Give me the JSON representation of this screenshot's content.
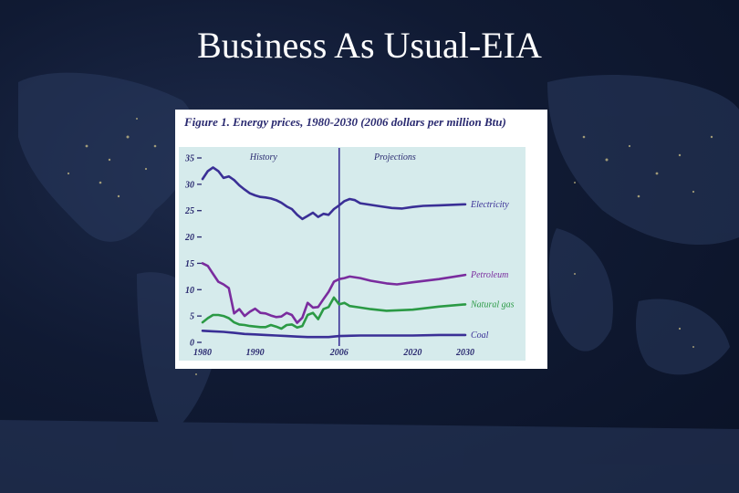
{
  "slide": {
    "title": "Business As Usual-EIA"
  },
  "chart_data": {
    "type": "line",
    "title": "Figure 1. Energy prices, 1980-2030 (2006 dollars per million Btu)",
    "xlim": [
      1980,
      2030
    ],
    "ylim": [
      0,
      35
    ],
    "x_ticks": [
      1980,
      1990,
      2006,
      2020,
      2030
    ],
    "y_ticks": [
      0,
      5,
      10,
      15,
      20,
      25,
      30,
      35
    ],
    "grid": false,
    "legend": "inline labels at right end of each series",
    "divider_year": 2006,
    "region_labels": [
      "History",
      "Projections"
    ],
    "colors": {
      "plot_background": "#d6ebec",
      "electricity": "#3a2f96",
      "petroleum": "#7a2c9e",
      "natural_gas": "#2b9a45",
      "coal": "#3a2f96",
      "divider": "#3a2f96",
      "axis_text": "#2a2a70"
    },
    "series": [
      {
        "name": "Electricity",
        "color_key": "electricity",
        "points": [
          [
            1980,
            31
          ],
          [
            1981,
            32.5
          ],
          [
            1982,
            33.2
          ],
          [
            1983,
            32.5
          ],
          [
            1984,
            31.2
          ],
          [
            1985,
            31.5
          ],
          [
            1986,
            30.8
          ],
          [
            1987,
            29.8
          ],
          [
            1988,
            29
          ],
          [
            1989,
            28.3
          ],
          [
            1990,
            27.9
          ],
          [
            1991,
            27.6
          ],
          [
            1992,
            27.5
          ],
          [
            1993,
            27.3
          ],
          [
            1994,
            27
          ],
          [
            1995,
            26.5
          ],
          [
            1996,
            25.8
          ],
          [
            1997,
            25.3
          ],
          [
            1998,
            24.2
          ],
          [
            1999,
            23.4
          ],
          [
            2000,
            24
          ],
          [
            2001,
            24.6
          ],
          [
            2002,
            23.8
          ],
          [
            2003,
            24.4
          ],
          [
            2004,
            24.2
          ],
          [
            2005,
            25.3
          ],
          [
            2006,
            26
          ],
          [
            2007,
            26.8
          ],
          [
            2008,
            27.2
          ],
          [
            2009,
            27
          ],
          [
            2010,
            26.4
          ],
          [
            2012,
            26.1
          ],
          [
            2014,
            25.8
          ],
          [
            2016,
            25.5
          ],
          [
            2018,
            25.4
          ],
          [
            2020,
            25.7
          ],
          [
            2022,
            25.9
          ],
          [
            2025,
            26
          ],
          [
            2030,
            26.2
          ]
        ]
      },
      {
        "name": "Petroleum",
        "color_key": "petroleum",
        "points": [
          [
            1980,
            15
          ],
          [
            1981,
            14.5
          ],
          [
            1982,
            13
          ],
          [
            1983,
            11.5
          ],
          [
            1984,
            11
          ],
          [
            1985,
            10.3
          ],
          [
            1986,
            5.5
          ],
          [
            1987,
            6.3
          ],
          [
            1988,
            5
          ],
          [
            1989,
            5.8
          ],
          [
            1990,
            6.4
          ],
          [
            1991,
            5.6
          ],
          [
            1992,
            5.5
          ],
          [
            1993,
            5.1
          ],
          [
            1994,
            4.8
          ],
          [
            1995,
            4.9
          ],
          [
            1996,
            5.6
          ],
          [
            1997,
            5.2
          ],
          [
            1998,
            3.7
          ],
          [
            1999,
            4.7
          ],
          [
            2000,
            7.5
          ],
          [
            2001,
            6.6
          ],
          [
            2002,
            6.7
          ],
          [
            2003,
            8.2
          ],
          [
            2004,
            9.6
          ],
          [
            2005,
            11.5
          ],
          [
            2006,
            12
          ],
          [
            2007,
            12.2
          ],
          [
            2008,
            12.5
          ],
          [
            2010,
            12.2
          ],
          [
            2012,
            11.7
          ],
          [
            2015,
            11.2
          ],
          [
            2017,
            11
          ],
          [
            2020,
            11.4
          ],
          [
            2025,
            12
          ],
          [
            2030,
            12.8
          ]
        ]
      },
      {
        "name": "Natural gas",
        "color_key": "natural_gas",
        "points": [
          [
            1980,
            3.8
          ],
          [
            1981,
            4.6
          ],
          [
            1982,
            5.2
          ],
          [
            1983,
            5.2
          ],
          [
            1984,
            5
          ],
          [
            1985,
            4.6
          ],
          [
            1986,
            3.8
          ],
          [
            1987,
            3.4
          ],
          [
            1988,
            3.3
          ],
          [
            1989,
            3.1
          ],
          [
            1990,
            3
          ],
          [
            1991,
            2.9
          ],
          [
            1992,
            2.9
          ],
          [
            1993,
            3.3
          ],
          [
            1994,
            3
          ],
          [
            1995,
            2.6
          ],
          [
            1996,
            3.3
          ],
          [
            1997,
            3.4
          ],
          [
            1998,
            2.8
          ],
          [
            1999,
            3.1
          ],
          [
            2000,
            5.2
          ],
          [
            2001,
            5.6
          ],
          [
            2002,
            4.4
          ],
          [
            2003,
            6.3
          ],
          [
            2004,
            6.7
          ],
          [
            2005,
            8.5
          ],
          [
            2006,
            7.2
          ],
          [
            2007,
            7.5
          ],
          [
            2008,
            6.9
          ],
          [
            2010,
            6.6
          ],
          [
            2012,
            6.3
          ],
          [
            2015,
            6
          ],
          [
            2020,
            6.2
          ],
          [
            2025,
            6.8
          ],
          [
            2030,
            7.2
          ]
        ]
      },
      {
        "name": "Coal",
        "color_key": "coal",
        "points": [
          [
            1980,
            2.2
          ],
          [
            1982,
            2.1
          ],
          [
            1984,
            2
          ],
          [
            1986,
            1.8
          ],
          [
            1988,
            1.6
          ],
          [
            1990,
            1.5
          ],
          [
            1992,
            1.4
          ],
          [
            1994,
            1.3
          ],
          [
            1996,
            1.2
          ],
          [
            1998,
            1.1
          ],
          [
            2000,
            1
          ],
          [
            2002,
            1
          ],
          [
            2004,
            1
          ],
          [
            2006,
            1.2
          ],
          [
            2010,
            1.3
          ],
          [
            2015,
            1.3
          ],
          [
            2020,
            1.3
          ],
          [
            2025,
            1.4
          ],
          [
            2030,
            1.4
          ]
        ]
      }
    ]
  }
}
